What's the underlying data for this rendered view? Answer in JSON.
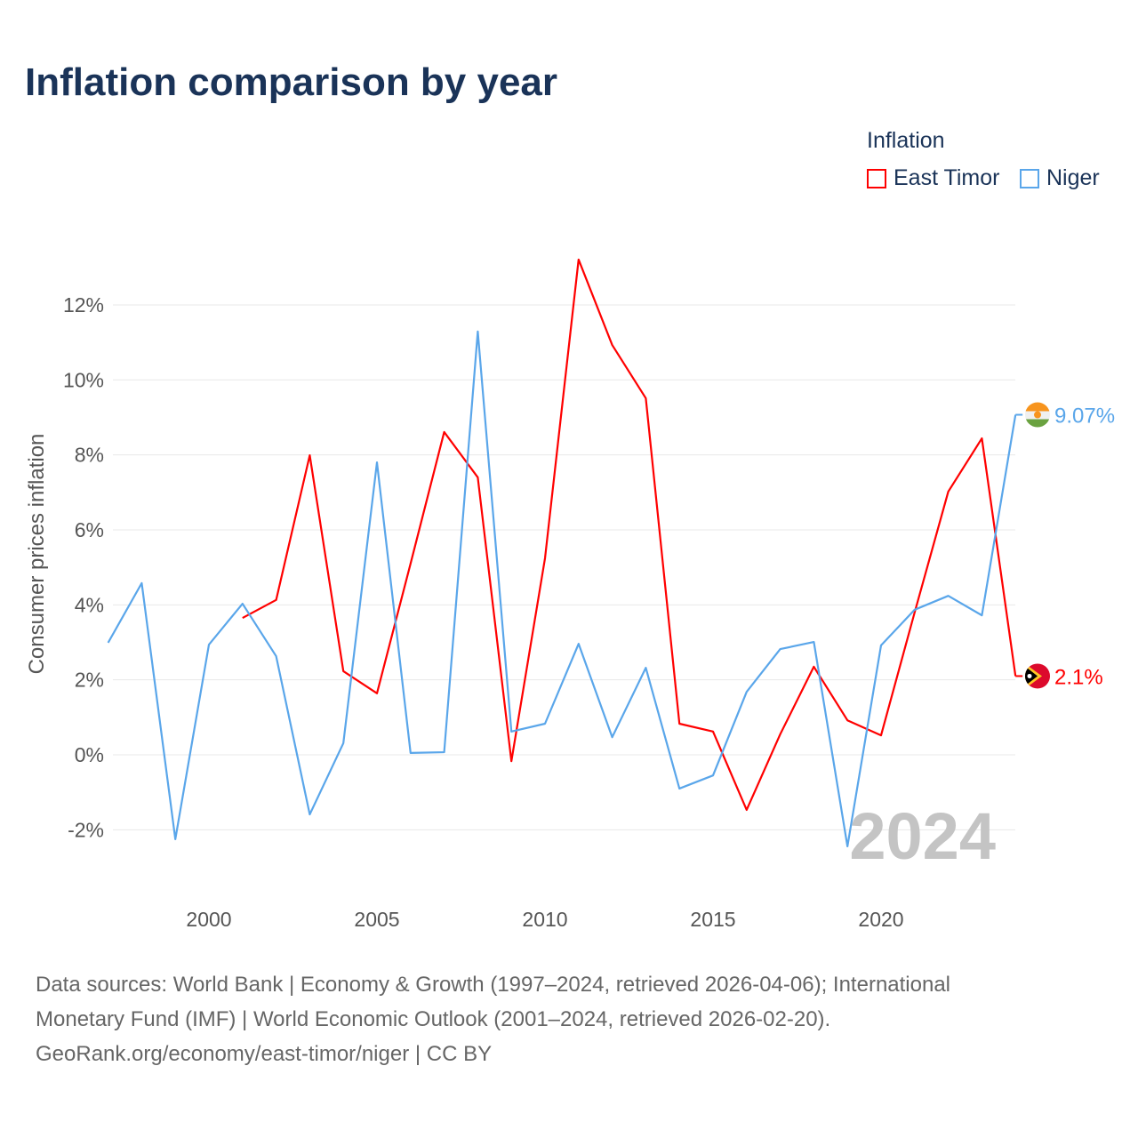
{
  "title": "Inflation comparison by year",
  "footer": {
    "line1": "Data sources: World Bank | Economy & Growth (1997–2024, retrieved 2026-04-06); International",
    "line2": "Monetary Fund (IMF) | World Economic Outlook (2001–2024, retrieved 2026-02-20).",
    "line3": "GeoRank.org/economy/east-timor/niger | CC BY"
  },
  "chart_data": {
    "type": "line",
    "title": "Inflation comparison by year",
    "xlabel": "",
    "ylabel": "Consumer prices inflation",
    "xlim": [
      1997,
      2024
    ],
    "ylim": [
      -3.5,
      13.5
    ],
    "x_ticks": [
      2000,
      2005,
      2010,
      2015,
      2020
    ],
    "y_ticks": [
      -2,
      0,
      2,
      4,
      6,
      8,
      10,
      12
    ],
    "y_tick_labels": [
      "-2%",
      "0%",
      "2%",
      "4%",
      "6%",
      "8%",
      "10%",
      "12%"
    ],
    "grid": true,
    "legend_title": "Inflation",
    "legend_position": "top-right",
    "watermark_year": "2024",
    "series": [
      {
        "name": "East Timor",
        "color": "#ff0000",
        "end_label": "2.1%",
        "x": [
          2001,
          2002,
          2003,
          2004,
          2005,
          2006,
          2007,
          2008,
          2009,
          2010,
          2011,
          2012,
          2013,
          2014,
          2015,
          2016,
          2017,
          2018,
          2019,
          2020,
          2021,
          2022,
          2023,
          2024
        ],
        "values": [
          3.65,
          4.13,
          7.99,
          2.23,
          1.64,
          5.1,
          8.61,
          7.4,
          -0.17,
          5.24,
          13.21,
          10.93,
          9.51,
          0.83,
          0.62,
          -1.47,
          0.55,
          2.35,
          0.92,
          0.52,
          3.8,
          7.02,
          8.44,
          2.1
        ]
      },
      {
        "name": "Niger",
        "color": "#5aa6ea",
        "end_label": "9.07%",
        "x": [
          1997,
          1998,
          1999,
          2000,
          2001,
          2002,
          2003,
          2004,
          2005,
          2006,
          2007,
          2008,
          2009,
          2010,
          2011,
          2012,
          2013,
          2014,
          2015,
          2016,
          2017,
          2018,
          2019,
          2020,
          2021,
          2022,
          2023,
          2024
        ],
        "values": [
          2.99,
          4.58,
          -2.25,
          2.94,
          4.03,
          2.63,
          -1.59,
          0.31,
          7.8,
          0.05,
          0.07,
          11.29,
          0.62,
          0.83,
          2.96,
          0.47,
          2.32,
          -0.9,
          -0.55,
          1.68,
          2.82,
          3.01,
          -2.44,
          2.92,
          3.87,
          4.24,
          3.72,
          9.07
        ]
      }
    ]
  }
}
